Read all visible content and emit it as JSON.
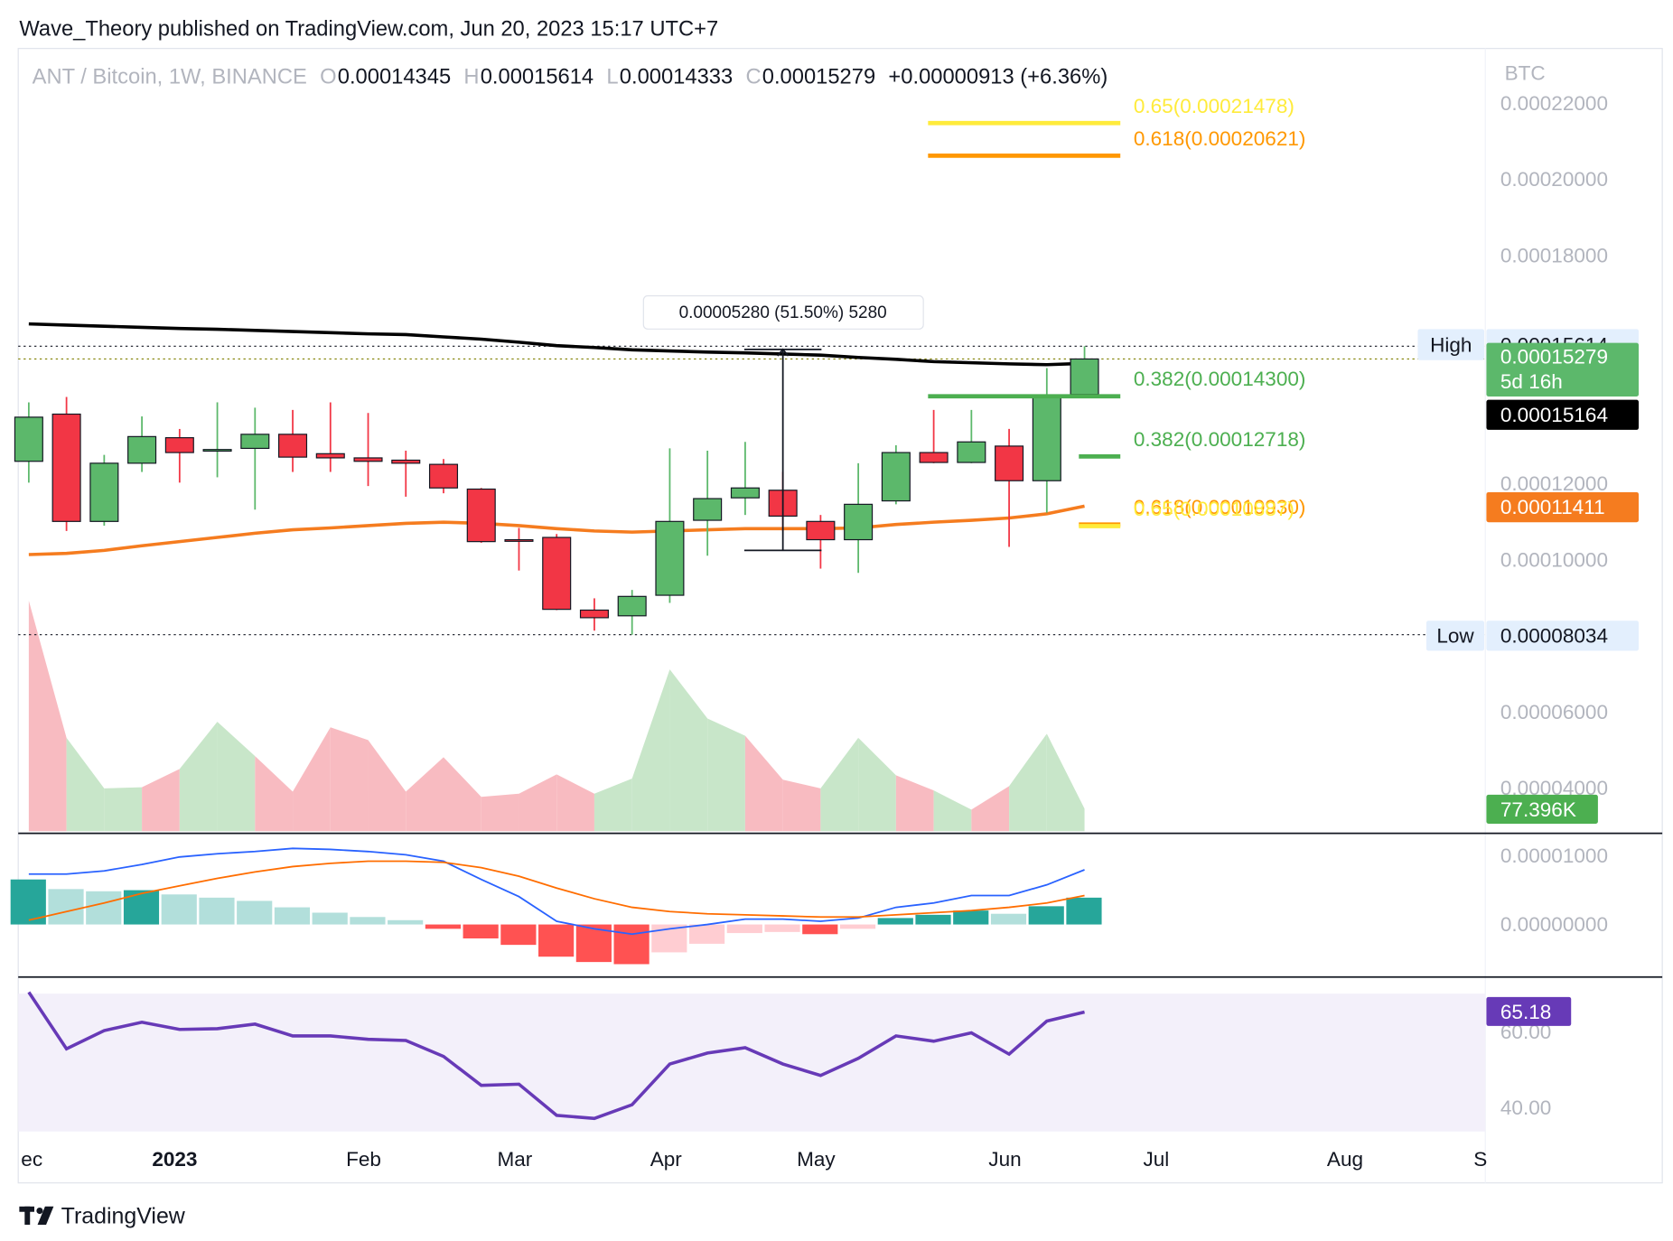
{
  "header": {
    "text": "Wave_Theory published on TradingView.com, Jun 20, 2023 15:17 UTC+7"
  },
  "footer": {
    "brand": "TradingView"
  },
  "chart_data": {
    "type": "candlestick",
    "title": "ANT / Bitcoin, 1W, BINANCE",
    "ohlc_letters": [
      "O",
      "H",
      "L",
      "C"
    ],
    "change_label": "+0.00000913 (+6.36%)",
    "currency": "BTC",
    "countdown": "5d 16h",
    "high_label": "High",
    "low_label": "Low",
    "up_color": "#5cb86b",
    "down_color": "#f23645",
    "xlim": [
      -0.28,
      38.63
    ],
    "xticks": [
      {
        "value": 0.08,
        "label": "ec"
      },
      {
        "value": 3.87,
        "label": "2023"
      },
      {
        "value": 8.88,
        "label": "Feb"
      },
      {
        "value": 12.89,
        "label": "Mar"
      },
      {
        "value": 16.9,
        "label": "Apr"
      },
      {
        "value": 20.88,
        "label": "May"
      },
      {
        "value": 25.89,
        "label": "Jun"
      },
      {
        "value": 29.9,
        "label": "Jul"
      },
      {
        "value": 34.91,
        "label": "Aug"
      },
      {
        "value": 38.5,
        "label": "S"
      }
    ],
    "ylim": [
      2.87e-05,
      0.0002358
    ],
    "yticks": [
      {
        "value": 0.00022,
        "label": "0.00022000"
      },
      {
        "value": 0.0002,
        "label": "0.00020000"
      },
      {
        "value": 0.00018,
        "label": "0.00018000"
      },
      {
        "value": 0.00012,
        "label": "0.00012000"
      },
      {
        "value": 0.0001,
        "label": "0.00010000"
      },
      {
        "value": 6e-05,
        "label": "0.00006000"
      },
      {
        "value": 4e-05,
        "label": "0.00004000"
      }
    ],
    "candles": {
      "open": [
        0.0001259,
        0.0001383,
        0.0001101,
        0.0001254,
        0.0001321,
        0.0001287,
        0.0001293,
        0.000133,
        0.0001279,
        0.0001268,
        0.0001262,
        0.0001251,
        0.0001186,
        0.0001053,
        0.0001059,
        8.68e-05,
        8.53e-05,
        9.07e-05,
        0.0001104,
        0.0001163,
        0.0001183,
        0.0001101,
        0.0001053,
        0.0001155,
        0.0001282,
        0.0001256,
        0.0001299,
        0.0001208,
        0.00014345
      ],
      "high": [
        0.0001414,
        0.0001428,
        0.0001276,
        0.0001377,
        0.0001344,
        0.0001414,
        0.00014,
        0.0001394,
        0.0001414,
        0.0001386,
        0.0001287,
        0.0001265,
        0.0001189,
        0.0001084,
        0.0001068,
        8.99e-05,
        9.21e-05,
        0.0001293,
        0.0001287,
        0.000131,
        0.0001231,
        0.0001118,
        0.0001254,
        0.0001301,
        0.0001394,
        0.0001394,
        0.0001344,
        0.0001504,
        0.00015614
      ],
      "low": [
        0.0001203,
        0.0001076,
        0.000109,
        0.0001231,
        0.0001203,
        0.0001217,
        0.0001132,
        0.0001231,
        0.0001231,
        0.0001194,
        0.0001166,
        0.0001175,
        0.0001045,
        9.72e-05,
        8.68e-05,
        8.14e-05,
        8.034e-05,
        8.87e-05,
        0.0001011,
        0.0001118,
        0.0001076,
        9.77e-05,
        9.66e-05,
        0.0001146,
        0.0001254,
        0.0001254,
        0.0001034,
        0.0001124,
        0.00014333
      ],
      "close": [
        0.0001375,
        0.0001101,
        0.0001254,
        0.0001324,
        0.0001282,
        0.000129,
        0.000133,
        0.000127,
        0.0001268,
        0.0001259,
        0.0001254,
        0.0001189,
        0.0001048,
        0.0001051,
        8.7e-05,
        8.48e-05,
        9.04e-05,
        0.0001101,
        0.0001161,
        0.0001189,
        0.0001115,
        0.0001053,
        0.0001146,
        0.0001282,
        0.0001256,
        0.000131,
        0.0001208,
        0.0001431,
        0.00015279
      ]
    },
    "moving_averages": [
      {
        "color": "#000000",
        "values": [
          0.000162,
          0.0001617,
          0.0001614,
          0.0001611,
          0.0001608,
          0.0001606,
          0.0001603,
          0.00016,
          0.0001597,
          0.0001594,
          0.0001592,
          0.0001586,
          0.000158,
          0.0001572,
          0.0001563,
          0.0001558,
          0.0001552,
          0.0001549,
          0.0001546,
          0.0001544,
          0.0001541,
          0.0001538,
          0.0001532,
          0.0001527,
          0.0001521,
          0.0001518,
          0.0001515,
          0.0001513,
          0.00015164
        ]
      },
      {
        "color": "#f57c1f",
        "values": [
          0.0001014,
          0.0001017,
          0.0001025,
          0.0001037,
          0.0001048,
          0.0001059,
          0.000107,
          0.0001079,
          0.0001084,
          0.000109,
          0.0001096,
          0.0001099,
          0.0001096,
          0.000109,
          0.0001082,
          0.0001076,
          0.0001073,
          0.0001076,
          0.0001079,
          0.0001082,
          0.0001082,
          0.0001082,
          0.0001084,
          0.0001093,
          0.0001099,
          0.0001104,
          0.000111,
          0.0001121,
          0.00011411
        ]
      }
    ],
    "fib_levels": [
      {
        "value": 0.00021478,
        "label": "0.65(0.00021478)",
        "color": "#ffeb3b"
      },
      {
        "value": 0.00020621,
        "label": "0.618(0.00020621)",
        "color": "#ff9800"
      },
      {
        "value": 0.000143,
        "label": "0.382(0.00014300)",
        "color": "#4caf50"
      },
      {
        "value": 0.00012718,
        "label": "0.382(0.00012718)",
        "color": "#4caf50"
      },
      {
        "value": 0.0001093,
        "label": "0.618(0.00010930)",
        "color": "#ff9800"
      },
      {
        "value": 0.00010887,
        "label": "0.65(0.00010887)",
        "color": "#ffeb3b"
      }
    ],
    "measure": {
      "from": 0.0001025,
      "to": 0.0001553,
      "label": "0.00005280 (51.50%) 5280"
    },
    "volume": {
      "values": [
        792000,
        321000,
        147000,
        151000,
        214000,
        376000,
        258000,
        136000,
        357000,
        313000,
        136000,
        254000,
        118000,
        129000,
        195000,
        129000,
        181000,
        556000,
        387000,
        328000,
        177000,
        147000,
        321000,
        192000,
        140000,
        74000,
        155000,
        335000,
        77396
      ],
      "last_label": "77.396K",
      "up_color": "#c8e6c9",
      "down_color": "#f8bbc1",
      "label_color": "#4caf50"
    },
    "macd": {
      "ylim": [
        -7.5e-06,
        1.3125e-05
      ],
      "yticks": [
        {
          "value": 1e-05,
          "label": "0.00001000"
        },
        {
          "value": 0,
          "label": "0.00000000"
        }
      ],
      "histogram": [
        6.56e-06,
        5.16e-06,
        4.84e-06,
        5e-06,
        4.38e-06,
        3.91e-06,
        3.44e-06,
        2.5e-06,
        1.72e-06,
        1.09e-06,
        6.3e-07,
        -6.3e-07,
        -2.03e-06,
        -2.97e-06,
        -4.69e-06,
        -5.47e-06,
        -5.78e-06,
        -4.06e-06,
        -2.81e-06,
        -1.25e-06,
        -1.09e-06,
        -1.41e-06,
        -6.3e-07,
        9.4e-07,
        1.41e-06,
        2.03e-06,
        1.56e-06,
        2.66e-06,
        3.91e-06
      ],
      "macd": [
        7.34e-06,
        7.34e-06,
        7.81e-06,
        8.75e-06,
        9.84e-06,
        1.031e-05,
        1.063e-05,
        1.109e-05,
        1.094e-05,
        1.063e-05,
        1.016e-05,
        9.22e-06,
        6.56e-06,
        4.06e-06,
        4.7e-07,
        -6.3e-07,
        -1.41e-06,
        -6.3e-07,
        0,
        7.8e-07,
        7.8e-07,
        4.7e-07,
        9.4e-07,
        2.5e-06,
        3.13e-06,
        4.22e-06,
        4.22e-06,
        5.78e-06,
        7.97e-06
      ],
      "signal": [
        6.3e-07,
        1.88e-06,
        3.13e-06,
        4.53e-06,
        5.63e-06,
        6.72e-06,
        7.66e-06,
        8.44e-06,
        8.91e-06,
        9.22e-06,
        9.22e-06,
        9.06e-06,
        8.28e-06,
        7.03e-06,
        5.31e-06,
        3.75e-06,
        2.5e-06,
        1.88e-06,
        1.56e-06,
        1.41e-06,
        1.25e-06,
        1.09e-06,
        1.09e-06,
        1.41e-06,
        1.72e-06,
        2.03e-06,
        2.5e-06,
        3.13e-06,
        4.22e-06
      ],
      "macd_color": "#2962ff",
      "signal_color": "#ff6d00",
      "hist_colors": {
        "pos_up": "#26a69a",
        "pos_down": "#b2dfdb",
        "neg_down": "#ff5252",
        "neg_up": "#ffcdd2"
      }
    },
    "rsi": {
      "ylim": [
        31.8,
        74.1
      ],
      "yticks": [
        {
          "value": 60,
          "label": "60.00"
        },
        {
          "value": 40,
          "label": "40.00"
        }
      ],
      "band": [
        30,
        70
      ],
      "band_color": "#f3f0fa",
      "color": "#673ab7",
      "values": [
        70.4,
        55.5,
        60.3,
        62.5,
        60.6,
        60.8,
        62.0,
        58.9,
        58.9,
        58.0,
        57.7,
        53.5,
        45.9,
        46.2,
        38.0,
        37.2,
        40.8,
        51.5,
        54.4,
        55.8,
        51.5,
        48.5,
        53.0,
        58.9,
        57.5,
        59.7,
        54.1,
        62.8,
        65.18
      ]
    }
  }
}
